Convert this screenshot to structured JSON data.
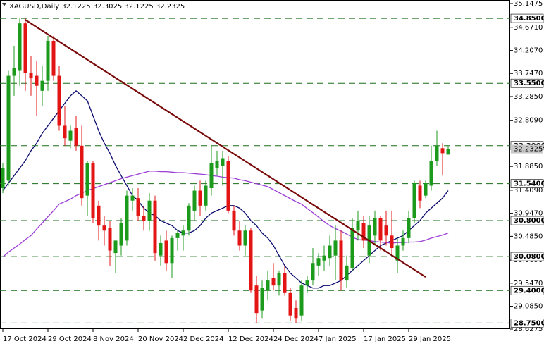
{
  "chart_data": {
    "type": "candlestick",
    "title": "XAGUSD,Daily  32.1225 32.3025 32.1225 32.2325",
    "categories": [
      "17 Oct 2024",
      null,
      null,
      null,
      null,
      null,
      null,
      null,
      "29 Oct 2024",
      null,
      null,
      null,
      null,
      null,
      null,
      null,
      "8 Nov 2024",
      null,
      null,
      null,
      null,
      null,
      null,
      null,
      "20 Nov 2024",
      null,
      null,
      null,
      null,
      null,
      null,
      null,
      "2 Dec 2024",
      null,
      null,
      null,
      null,
      null,
      null,
      null,
      "12 Dec 2024",
      null,
      null,
      null,
      null,
      null,
      null,
      null,
      "24 Dec 2024",
      null,
      null,
      null,
      null,
      null,
      null,
      null,
      "7 Jan 2025",
      null,
      null,
      null,
      null,
      null,
      null,
      null,
      "17 Jan 2025",
      null,
      null,
      null,
      null,
      null,
      null,
      null,
      "29 Jan 2025",
      null,
      null,
      null,
      null,
      null,
      null,
      null
    ],
    "open": [
      31.45,
      31.6,
      33.7,
      33.8,
      34.75,
      33.75,
      33.7,
      33.4,
      33.6,
      34.4,
      33.7,
      32.7,
      32.4,
      32.65,
      32.3,
      31.3,
      31.95,
      31.1,
      30.7,
      30.65,
      30.15,
      30.3,
      30.4,
      31.2,
      31.25,
      30.9,
      30.8,
      31.2,
      30.1,
      30.4,
      29.95,
      30.45,
      30.5,
      30.6,
      31.0,
      31.4,
      31.1,
      31.45,
      31.85,
      31.9,
      32.0,
      31.0,
      30.6,
      30.3,
      30.6,
      29.5,
      29.0,
      29.4,
      29.65,
      29.5,
      29.75,
      29.35,
      29.05,
      28.9,
      29.5,
      29.6,
      29.9,
      30.0,
      30.05,
      30.1,
      30.4,
      29.6,
      29.85,
      30.6,
      30.75,
      30.1,
      30.5,
      30.85,
      30.7,
      30.5,
      30.0,
      30.3,
      30.45,
      30.85,
      31.5,
      31.3,
      31.5,
      32.0,
      32.25,
      32.1225
    ],
    "high": [
      31.95,
      33.8,
      34.3,
      34.85,
      34.85,
      34.1,
      34.0,
      33.9,
      34.5,
      34.5,
      33.9,
      33.1,
      32.7,
      32.9,
      32.7,
      32.0,
      32.0,
      31.2,
      30.9,
      30.8,
      30.4,
      30.85,
      31.4,
      31.45,
      31.45,
      31.1,
      31.35,
      31.3,
      30.5,
      30.6,
      30.5,
      30.6,
      30.7,
      31.15,
      31.5,
      31.6,
      31.6,
      32.3,
      32.2,
      32.2,
      32.1,
      31.1,
      30.8,
      30.7,
      30.65,
      29.7,
      29.6,
      29.8,
      29.95,
      29.8,
      29.9,
      29.45,
      29.2,
      29.6,
      29.7,
      30.25,
      30.15,
      30.3,
      30.5,
      30.7,
      30.6,
      30.1,
      30.85,
      31.0,
      30.9,
      30.9,
      31.0,
      30.9,
      31.0,
      31.0,
      30.45,
      30.6,
      31.0,
      31.6,
      31.6,
      31.6,
      32.3,
      32.6,
      32.35,
      32.3025
    ],
    "low": [
      31.35,
      31.5,
      33.3,
      33.5,
      33.4,
      33.3,
      32.9,
      33.1,
      33.4,
      33.6,
      32.6,
      32.3,
      32.25,
      32.2,
      31.1,
      30.9,
      30.75,
      30.4,
      30.3,
      29.9,
      29.75,
      30.1,
      30.3,
      31.0,
      30.8,
      30.6,
      30.6,
      30.0,
      29.9,
      29.8,
      29.65,
      30.2,
      30.2,
      30.5,
      30.8,
      30.9,
      31.0,
      31.3,
      31.7,
      31.5,
      30.95,
      30.5,
      30.2,
      30.1,
      29.35,
      28.75,
      28.85,
      29.2,
      29.4,
      29.3,
      29.3,
      28.8,
      28.75,
      28.8,
      29.35,
      29.5,
      29.7,
      29.8,
      29.9,
      29.6,
      29.4,
      29.45,
      29.8,
      30.4,
      30.25,
      29.95,
      30.3,
      30.2,
      30.3,
      30.1,
      29.75,
      30.2,
      30.35,
      30.75,
      31.05,
      31.25,
      31.4,
      31.9,
      31.7,
      32.1225
    ],
    "close": [
      31.85,
      33.7,
      33.85,
      34.75,
      33.75,
      33.65,
      33.5,
      33.6,
      34.4,
      33.7,
      32.7,
      32.45,
      32.6,
      32.3,
      31.25,
      31.95,
      30.85,
      30.7,
      30.6,
      30.2,
      30.4,
      30.75,
      31.3,
      31.3,
      30.9,
      30.8,
      31.2,
      30.15,
      30.35,
      29.95,
      30.45,
      30.55,
      30.6,
      31.1,
      31.4,
      31.1,
      31.5,
      31.95,
      32.0,
      32.05,
      31.0,
      30.6,
      30.3,
      30.6,
      29.4,
      28.95,
      29.45,
      29.6,
      29.5,
      29.75,
      29.35,
      28.9,
      28.85,
      29.5,
      29.6,
      29.95,
      30.05,
      30.1,
      30.3,
      30.4,
      29.6,
      29.9,
      30.65,
      30.8,
      30.4,
      30.7,
      30.85,
      30.4,
      30.5,
      30.25,
      30.3,
      30.45,
      30.85,
      31.55,
      31.2,
      31.55,
      32.0,
      32.3,
      32.15,
      32.2325
    ],
    "up_color": "#1b9a1b",
    "down_color": "#e31414",
    "moving_averages": [
      {
        "color": "#0a0a6e",
        "values": [
          31.4,
          31.55,
          31.7,
          31.85,
          32.0,
          32.2,
          32.35,
          32.55,
          32.7,
          32.85,
          33.0,
          33.15,
          33.3,
          33.4,
          33.3,
          33.2,
          32.9,
          32.6,
          32.35,
          32.15,
          31.9,
          31.7,
          31.5,
          31.3,
          31.2,
          31.05,
          30.95,
          30.9,
          30.8,
          30.75,
          30.7,
          30.6,
          30.55,
          30.55,
          30.6,
          30.7,
          30.85,
          30.95,
          31.0,
          31.05,
          31.1,
          31.1,
          31.05,
          30.95,
          30.8,
          30.7,
          30.55,
          30.45,
          30.3,
          30.1,
          29.9,
          29.75,
          29.65,
          29.55,
          29.5,
          29.45,
          29.45,
          29.5,
          29.5,
          29.55,
          29.6,
          29.7,
          29.8,
          29.9,
          30.0,
          30.1,
          30.2,
          30.3,
          30.35,
          30.4,
          30.45,
          30.5,
          30.6,
          30.7,
          30.8,
          30.95,
          31.05,
          31.15,
          31.25,
          31.4
        ]
      },
      {
        "color": "#9b3fd6",
        "values": [
          30.07,
          30.17,
          30.25,
          30.33,
          30.42,
          30.5,
          30.63,
          30.75,
          30.88,
          31.0,
          31.13,
          31.18,
          31.23,
          31.3,
          31.35,
          31.4,
          31.44,
          31.48,
          31.52,
          31.56,
          31.6,
          31.64,
          31.67,
          31.7,
          31.73,
          31.76,
          31.79,
          31.79,
          31.78,
          31.78,
          31.77,
          31.76,
          31.76,
          31.75,
          31.74,
          31.73,
          31.72,
          31.7,
          31.69,
          31.67,
          31.66,
          31.65,
          31.62,
          31.6,
          31.57,
          31.54,
          31.51,
          31.48,
          31.42,
          31.36,
          31.3,
          31.24,
          31.18,
          31.13,
          31.04,
          30.96,
          30.87,
          30.78,
          30.7,
          30.64,
          30.59,
          30.53,
          30.47,
          30.42,
          30.41,
          30.4,
          30.38,
          30.37,
          30.36,
          30.35,
          30.36,
          30.36,
          30.37,
          30.37,
          30.38,
          30.41,
          30.45,
          30.48,
          30.51,
          30.55
        ]
      }
    ],
    "trendline": {
      "color": "#7a0a0a",
      "points": [
        {
          "index": 4,
          "value": 34.82
        },
        {
          "index": 75,
          "value": 29.67
        }
      ]
    },
    "ylim": [
      28.6275,
      35.1475
    ],
    "yticks": [
      {
        "value": 35.1475,
        "label": "35.1475"
      },
      {
        "value": 34.671,
        "label": "34.6710"
      },
      {
        "value": 34.207,
        "label": "34.2070"
      },
      {
        "value": 33.747,
        "label": "33.7470"
      },
      {
        "value": 33.285,
        "label": "33.2850"
      },
      {
        "value": 32.809,
        "label": "32.8090"
      },
      {
        "value": 31.885,
        "label": "31.8850"
      },
      {
        "value": 31.409,
        "label": "31.4090"
      },
      {
        "value": 30.947,
        "label": "30.9470"
      },
      {
        "value": 30.485,
        "label": "30.4850"
      },
      {
        "value": 30.009,
        "label": "30.0090"
      },
      {
        "value": 29.547,
        "label": "29.5470"
      },
      {
        "value": 29.085,
        "label": "29.0850"
      },
      {
        "value": 28.6275,
        "label": "28.6275"
      }
    ],
    "level_color": "#1a6e1a",
    "levels": [
      {
        "value": 34.85,
        "label": "34.8500"
      },
      {
        "value": 33.55,
        "label": "33.5500"
      },
      {
        "value": 32.3,
        "label": "32.3000"
      },
      {
        "value": 31.54,
        "label": "31.5400"
      },
      {
        "value": 30.8,
        "label": "30.8000"
      },
      {
        "value": 30.08,
        "label": "30.0800"
      },
      {
        "value": 29.4,
        "label": "29.4000"
      },
      {
        "value": 28.75,
        "label": "28.7500"
      }
    ],
    "current_price": {
      "value": 32.2325,
      "label": "32.2325"
    }
  }
}
